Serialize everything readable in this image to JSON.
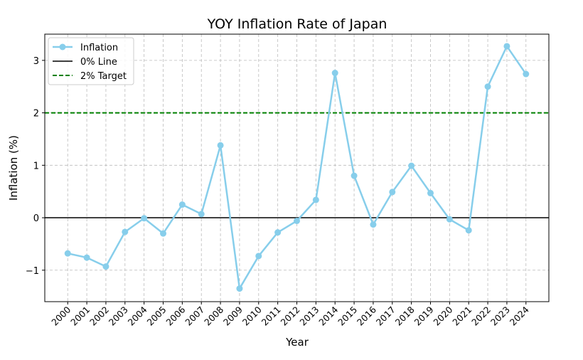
{
  "chart_data": {
    "type": "line",
    "title": "YOY Inflation Rate of Japan",
    "xlabel": "Year",
    "ylabel": "Inflation (%)",
    "x": [
      2000,
      2001,
      2002,
      2003,
      2004,
      2005,
      2006,
      2007,
      2008,
      2009,
      2010,
      2011,
      2012,
      2013,
      2014,
      2015,
      2016,
      2017,
      2018,
      2019,
      2020,
      2021,
      2022,
      2023,
      2024
    ],
    "series": [
      {
        "name": "Inflation",
        "color": "#87ceeb",
        "values": [
          -0.68,
          -0.76,
          -0.93,
          -0.27,
          -0.01,
          -0.3,
          0.25,
          0.07,
          1.38,
          -1.35,
          -0.73,
          -0.28,
          -0.06,
          0.34,
          2.76,
          0.8,
          -0.13,
          0.49,
          0.99,
          0.47,
          -0.03,
          -0.24,
          2.5,
          3.27,
          2.74
        ]
      }
    ],
    "reference_lines": [
      {
        "name": "0% Line",
        "value": 0,
        "color": "#000000",
        "style": "solid"
      },
      {
        "name": "2% Target",
        "value": 2,
        "color": "#008000",
        "style": "dashed"
      }
    ],
    "yticks": [
      -1,
      0,
      1,
      2,
      3
    ],
    "ytick_labels": [
      "−1",
      "0",
      "1",
      "2",
      "3"
    ],
    "ylim": [
      -1.6,
      3.5
    ],
    "xlim": [
      1998.8,
      2025.2
    ],
    "grid": true,
    "legend": "top-left"
  }
}
